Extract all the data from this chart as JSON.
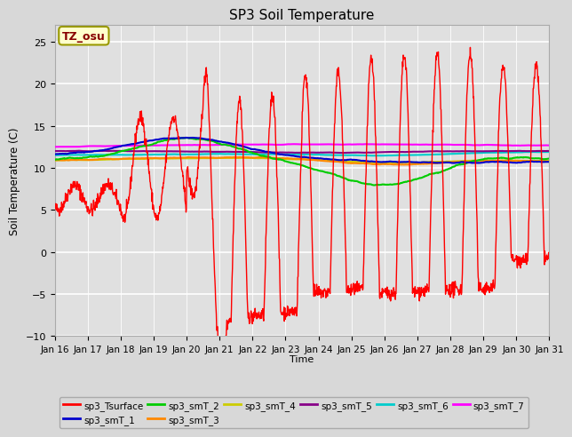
{
  "title": "SP3 Soil Temperature",
  "ylabel": "Soil Temperature (C)",
  "xlabel": "Time",
  "annotation": "TZ_osu",
  "bg_color": "#d8d8d8",
  "plot_bg_color": "#e0e0e0",
  "grid_color": "#ffffff",
  "ylim": [
    -10,
    27
  ],
  "yticks": [
    -10,
    -5,
    0,
    5,
    10,
    15,
    20,
    25
  ],
  "xtick_labels": [
    "Jan 16",
    "Jan 17",
    "Jan 18",
    "Jan 19",
    "Jan 20",
    "Jan 21",
    "Jan 22",
    "Jan 23",
    "Jan 24",
    "Jan 25",
    "Jan 26",
    "Jan 27",
    "Jan 28",
    "Jan 29",
    "Jan 30",
    "Jan 31"
  ],
  "legend": [
    {
      "label": "sp3_Tsurface",
      "color": "#ff0000"
    },
    {
      "label": "sp3_smT_1",
      "color": "#0000cc"
    },
    {
      "label": "sp3_smT_2",
      "color": "#00cc00"
    },
    {
      "label": "sp3_smT_3",
      "color": "#ff8800"
    },
    {
      "label": "sp3_smT_4",
      "color": "#cccc00"
    },
    {
      "label": "sp3_smT_5",
      "color": "#880088"
    },
    {
      "label": "sp3_smT_6",
      "color": "#00cccc"
    },
    {
      "label": "sp3_smT_7",
      "color": "#ff00ff"
    }
  ]
}
